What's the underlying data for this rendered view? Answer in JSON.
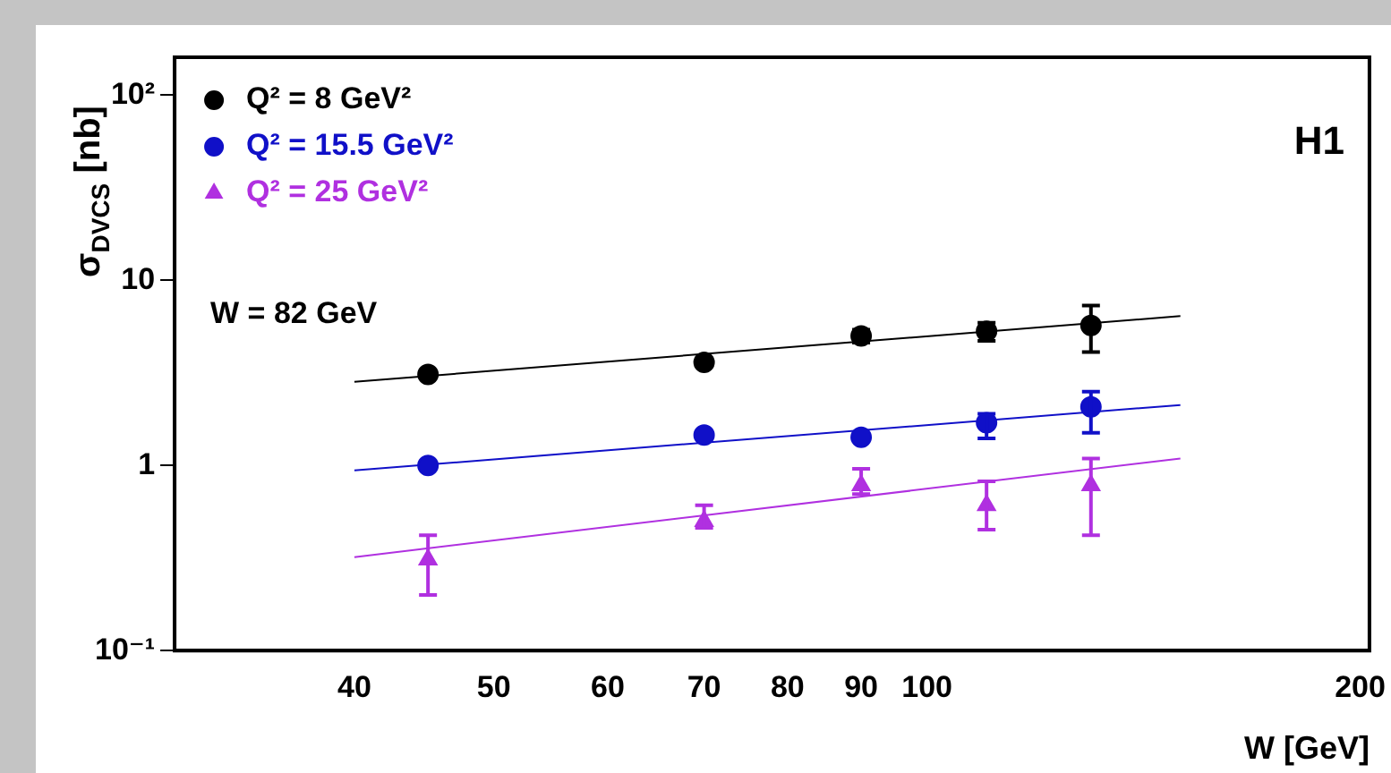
{
  "chart_data": {
    "type": "scatter",
    "ylabel": "σ$_{DVCS}$ [nb]",
    "xlabel": "W [GeV]",
    "annotations": [
      "W = 82 GeV",
      "H1"
    ],
    "log": "xy",
    "grid": false,
    "legend": "top left",
    "xlim": [
      30,
      203
    ],
    "xticks": [
      40,
      50,
      60,
      70,
      80,
      90,
      100,
      200
    ],
    "ylim": [
      0.1,
      160
    ],
    "yticks": [
      {
        "value": 0.1,
        "label": "10⁻¹"
      },
      1,
      10,
      {
        "value": 100,
        "label": "10²"
      }
    ],
    "series": [
      {
        "name": "Q² = 8 GeV²",
        "color": "#000000",
        "marker": "circle",
        "x": [
          45,
          70,
          90,
          110,
          130
        ],
        "values": [
          3.1,
          3.6,
          5.0,
          5.3,
          5.7
        ],
        "errors": [
          null,
          null,
          0.4,
          0.6,
          1.6
        ]
      },
      {
        "name": "Q² = 15.5 GeV²",
        "color": "#1010c8",
        "marker": "circle",
        "x": [
          45,
          70,
          90,
          110,
          130
        ],
        "values": [
          1.0,
          1.46,
          1.42,
          1.7,
          2.07
        ],
        "errors": [
          null,
          null,
          null,
          [
            1.4,
            1.9
          ],
          [
            1.5,
            2.5
          ]
        ]
      },
      {
        "name": "Q² = 25 GeV²",
        "color": "#b030e0",
        "marker": "triangle",
        "x": [
          45,
          70,
          90,
          110,
          130
        ],
        "values": [
          0.31,
          0.5,
          0.78,
          0.61,
          0.78
        ],
        "errors": [
          [
            0.2,
            0.42
          ],
          [
            0.46,
            0.61
          ],
          [
            0.7,
            0.96
          ],
          [
            0.45,
            0.82
          ],
          [
            0.42,
            1.09
          ]
        ]
      },
      {
        "type": "line",
        "color": "#000000",
        "marker": "none",
        "x": [
          40,
          150
        ],
        "values": [
          2.83,
          6.4
        ]
      },
      {
        "type": "line",
        "color": "#1010c8",
        "marker": "none",
        "x": [
          40,
          150
        ],
        "values": [
          0.94,
          2.12
        ]
      },
      {
        "type": "line",
        "color": "#b030e0",
        "marker": "none",
        "x": [
          40,
          150
        ],
        "values": [
          0.32,
          1.09
        ]
      }
    ]
  }
}
